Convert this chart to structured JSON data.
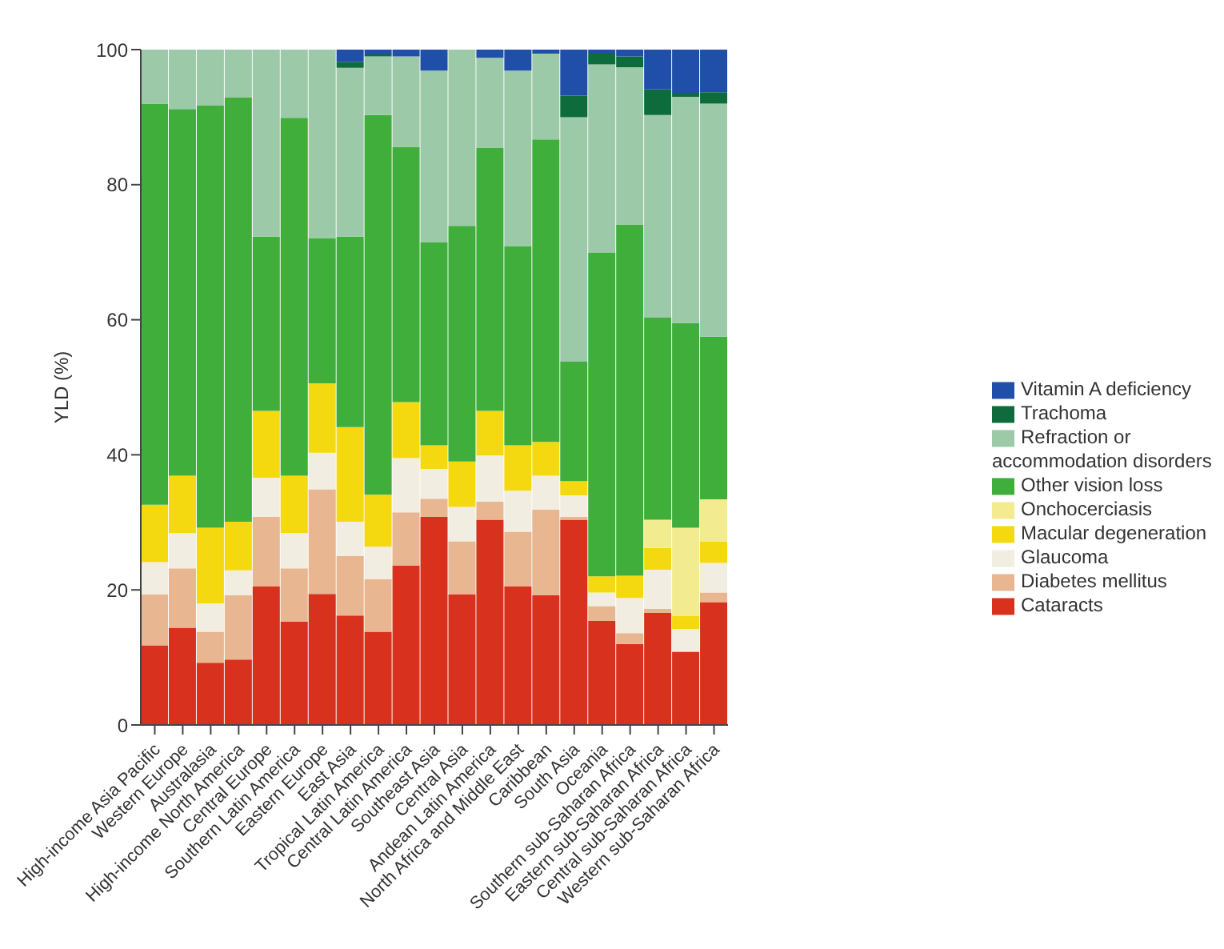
{
  "chart_data": {
    "type": "bar",
    "stacked": true,
    "ylabel": "YLD (%)",
    "ylim": [
      0,
      100
    ],
    "yticks": [
      0,
      20,
      40,
      60,
      80,
      100
    ],
    "grid": false,
    "legend": "right",
    "categories": [
      "High-income Asia Pacific",
      "Western Europe",
      "Australasia",
      "High-income North America",
      "Central Europe",
      "Southern Latin America",
      "Eastern Europe",
      "East Asia",
      "Tropical Latin America",
      "Central Latin America",
      "Southeast Asia",
      "Central Asia",
      "Andean Latin America",
      "North Africa and Middle East",
      "Caribbean",
      "South Asia",
      "Oceania",
      "Southern sub-Saharan Africa",
      "Eastern sub-Saharan Africa",
      "Central sub-Saharan Africa",
      "Western sub-Saharan Africa"
    ],
    "series": [
      {
        "name": "Cataracts",
        "color": "#d8321e",
        "values": [
          11.8,
          14.4,
          9.2,
          9.7,
          20.5,
          15.3,
          19.4,
          16.2,
          13.8,
          23.6,
          30.8,
          19.3,
          30.4,
          20.5,
          19.2,
          30.4,
          15.4,
          12.0,
          16.6,
          10.8,
          18.2
        ]
      },
      {
        "name": "Diabetes mellitus",
        "color": "#e8b690",
        "values": [
          7.5,
          8.8,
          4.6,
          9.5,
          10.3,
          7.9,
          15.5,
          8.8,
          7.8,
          7.9,
          2.7,
          7.9,
          2.7,
          8.1,
          12.7,
          0.4,
          2.2,
          1.6,
          0.6,
          0.1,
          1.4
        ]
      },
      {
        "name": "Glaucoma",
        "color": "#f1ede0",
        "values": [
          4.8,
          5.2,
          4.2,
          3.7,
          5.8,
          5.2,
          5.4,
          5.1,
          4.8,
          8.0,
          4.4,
          5.1,
          6.8,
          6.1,
          5.0,
          3.2,
          2.0,
          5.2,
          5.8,
          3.3,
          4.4
        ]
      },
      {
        "name": "Macular degeneration",
        "color": "#f5d910",
        "values": [
          8.5,
          8.5,
          11.2,
          7.2,
          9.9,
          8.5,
          10.3,
          14.0,
          7.7,
          8.3,
          3.5,
          6.7,
          6.6,
          6.7,
          5.0,
          2.1,
          2.4,
          3.3,
          3.2,
          1.9,
          3.2
        ]
      },
      {
        "name": "Onchocerciasis",
        "color": "#f3eb90",
        "values": [
          0,
          0,
          0,
          0,
          0,
          0,
          0,
          0,
          0,
          0,
          0,
          0,
          0,
          0,
          0,
          0,
          0,
          0,
          4.2,
          13.1,
          6.2
        ]
      },
      {
        "name": "Other vision loss",
        "color": "#3fae3a",
        "values": [
          59.4,
          54.3,
          62.5,
          62.8,
          25.8,
          53.0,
          21.5,
          28.2,
          56.2,
          37.8,
          30.1,
          34.9,
          39.0,
          29.5,
          44.8,
          17.7,
          47.9,
          52.0,
          29.9,
          30.3,
          24.1
        ]
      },
      {
        "name": "Refraction or accommodation disorders",
        "color": "#9cc9a8",
        "values": [
          8.0,
          8.8,
          8.3,
          7.1,
          27.7,
          10.1,
          27.9,
          25.0,
          8.7,
          13.4,
          25.4,
          26.1,
          13.3,
          26.0,
          12.7,
          36.2,
          27.9,
          23.3,
          30.0,
          33.5,
          34.5
        ]
      },
      {
        "name": "Trachoma",
        "color": "#0e6b3c",
        "values": [
          0,
          0,
          0,
          0,
          0,
          0,
          0,
          0.9,
          0.3,
          0,
          0,
          0,
          0,
          0,
          0,
          3.2,
          1.6,
          1.6,
          3.8,
          0.6,
          1.7
        ]
      },
      {
        "name": "Vitamin A deficiency",
        "color": "#1f4fa8",
        "values": [
          0,
          0,
          0,
          0,
          0,
          0,
          0,
          1.8,
          0.7,
          1.0,
          3.1,
          0,
          1.2,
          3.1,
          0.6,
          6.8,
          0.6,
          1.0,
          5.9,
          6.4,
          6.3
        ]
      }
    ]
  }
}
